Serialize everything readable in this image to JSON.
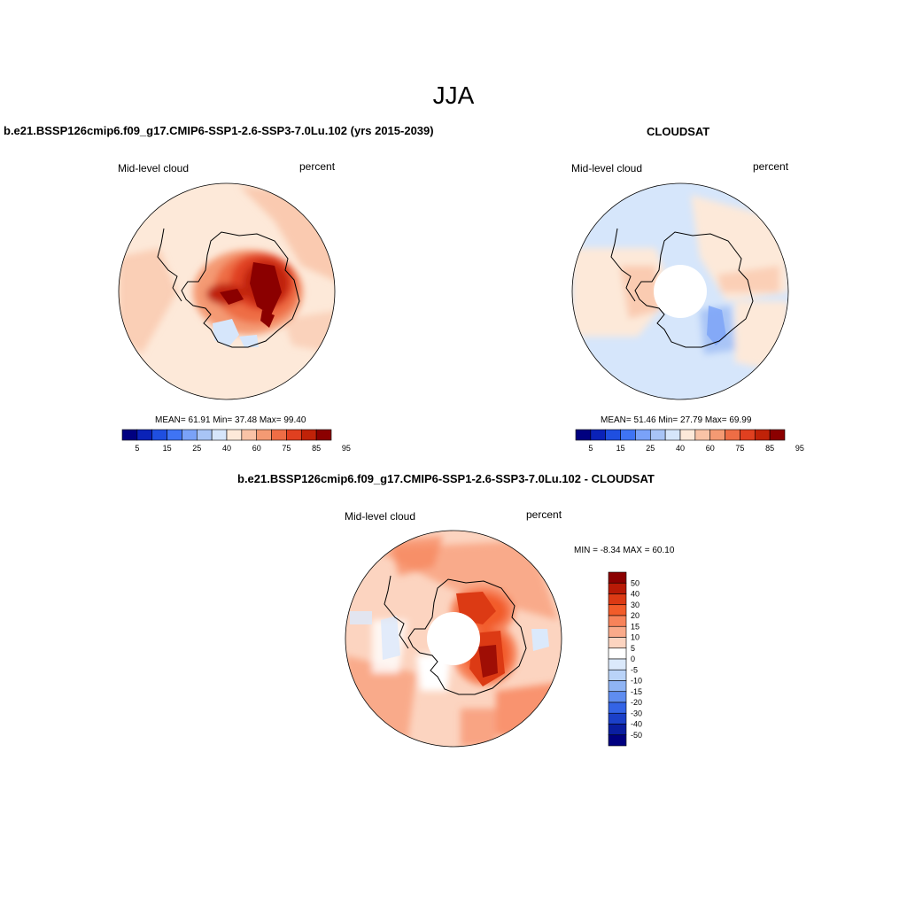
{
  "figure": {
    "title": "JJA"
  },
  "panels": [
    {
      "title": "b.e21.BSSP126cmip6.f09_g17.CMIP6-SSP1-2.6-SSP3-7.0Lu.102 (yrs 2015-2039)",
      "left_label": "Mid-level cloud",
      "right_label": "percent",
      "stats": "MEAN=  61.91  Min=  37.48  Max=  99.40",
      "colorbar_ticks": [
        "5",
        "15",
        "25",
        "40",
        "60",
        "75",
        "85",
        "95"
      ]
    },
    {
      "title": "CLOUDSAT",
      "left_label": "Mid-level cloud",
      "right_label": "percent",
      "stats": "MEAN=  51.46  Min=  27.79  Max=  69.99",
      "colorbar_ticks": [
        "5",
        "15",
        "25",
        "40",
        "60",
        "75",
        "85",
        "95"
      ]
    },
    {
      "title": "b.e21.BSSP126cmip6.f09_g17.CMIP6-SSP1-2.6-SSP3-7.0Lu.102 - CLOUDSAT",
      "left_label": "Mid-level cloud",
      "right_label": "percent",
      "stats": "MIN =  -8.34 MAX =  60.10",
      "colorbar_ticks": [
        "50",
        "40",
        "30",
        "20",
        "15",
        "10",
        "5",
        "0",
        "-5",
        "-10",
        "-15",
        "-20",
        "-30",
        "-40",
        "-50"
      ]
    }
  ],
  "colors": {
    "abs_scale": [
      "#000080",
      "#0a22b8",
      "#1f4fe0",
      "#3f74f4",
      "#7aa2f8",
      "#a8c4f6",
      "#d6e6fb",
      "#fde9d9",
      "#f9c3a6",
      "#f49a73",
      "#ee6d45",
      "#e04020",
      "#c02208",
      "#8b0000"
    ],
    "diff_scale": [
      "#8b0000",
      "#b81a06",
      "#dc3a14",
      "#f25c2a",
      "#f7835a",
      "#f9aa8a",
      "#fcd4c0",
      "#ffffff",
      "#dbe9fb",
      "#b9d3f8",
      "#8fb4f4",
      "#5f8df0",
      "#3464e6",
      "#1b40c8",
      "#0a1ea0",
      "#000080"
    ]
  }
}
